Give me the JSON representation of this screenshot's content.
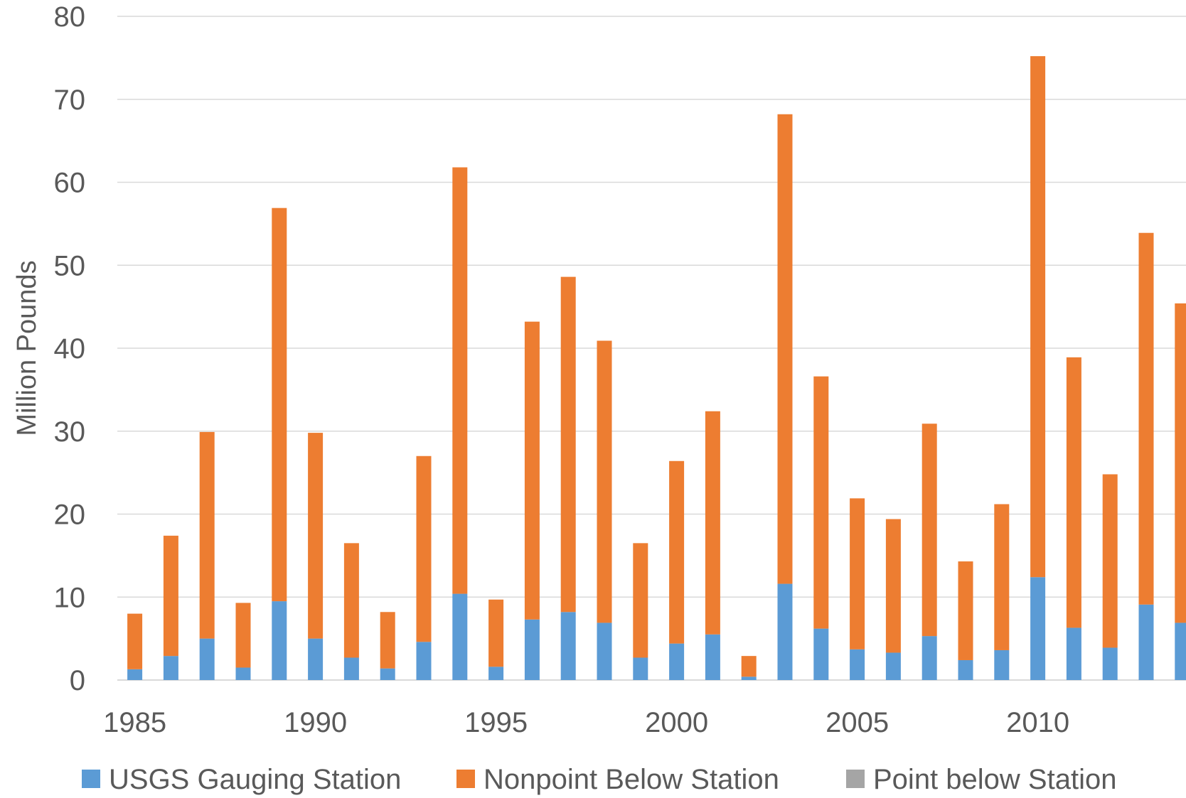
{
  "chart_data": {
    "type": "bar",
    "stacked": true,
    "title": "",
    "xlabel": "",
    "ylabel": "Million Pounds",
    "ylim": [
      0,
      80
    ],
    "yticks": [
      0,
      10,
      20,
      30,
      40,
      50,
      60,
      70,
      80
    ],
    "x_tick_labels": [
      "1985",
      "1990",
      "1995",
      "2000",
      "2005",
      "2010"
    ],
    "grid": true,
    "legend_position": "bottom",
    "categories": [
      "1985",
      "1986",
      "1987",
      "1988",
      "1989",
      "1990",
      "1991",
      "1992",
      "1993",
      "1994",
      "1995",
      "1996",
      "1997",
      "1998",
      "1999",
      "2000",
      "2001",
      "2002",
      "2003",
      "2004",
      "2005",
      "2006",
      "2007",
      "2008",
      "2009",
      "2010",
      "2011",
      "2012",
      "2013",
      "2014"
    ],
    "series": [
      {
        "name": "USGS Gauging Station",
        "color": "#5b9bd5",
        "values": [
          1.3,
          2.9,
          5.0,
          1.5,
          9.5,
          5.0,
          2.7,
          1.4,
          4.6,
          10.4,
          1.6,
          7.3,
          8.2,
          6.9,
          2.7,
          4.4,
          5.5,
          0.4,
          11.6,
          6.2,
          3.7,
          3.3,
          5.3,
          2.4,
          3.6,
          12.4,
          6.3,
          3.9,
          9.1,
          6.9
        ]
      },
      {
        "name": "Nonpoint Below Station",
        "color": "#ed7d31",
        "values": [
          6.7,
          14.5,
          24.9,
          7.8,
          47.4,
          24.8,
          13.8,
          6.8,
          22.4,
          51.4,
          8.1,
          35.9,
          40.4,
          34.0,
          13.8,
          22.0,
          26.9,
          2.5,
          56.6,
          30.4,
          18.2,
          16.1,
          25.6,
          11.9,
          17.6,
          62.8,
          32.6,
          20.9,
          44.8,
          38.5
        ]
      },
      {
        "name": "Point below Station",
        "color": "#a5a5a5",
        "values": [
          0,
          0,
          0,
          0,
          0,
          0,
          0,
          0,
          0,
          0,
          0,
          0,
          0,
          0,
          0,
          0,
          0,
          0,
          0,
          0,
          0,
          0,
          0,
          0,
          0,
          0,
          0,
          0,
          0,
          0
        ]
      }
    ]
  }
}
